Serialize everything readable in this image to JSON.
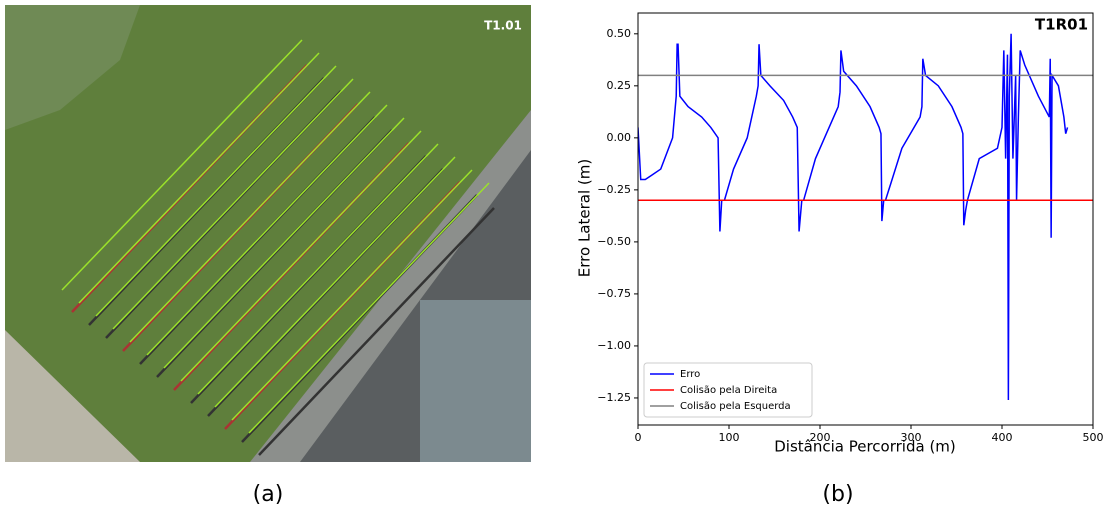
{
  "image": {
    "label": "T1.01",
    "caption": "(a)"
  },
  "chart_data": {
    "type": "line",
    "title": "T1R01",
    "caption": "(b)",
    "x_label": "Distância Percorrida (m)",
    "y_label": "Erro Lateral (m)",
    "xlim": [
      0,
      500
    ],
    "ylim": [
      -1.38,
      0.6
    ],
    "xticks": [
      0,
      100,
      200,
      300,
      400,
      500
    ],
    "yticks": [
      {
        "value": 0.5,
        "label": "0.50"
      },
      {
        "value": 0.25,
        "label": "0.25"
      },
      {
        "value": 0,
        "label": "0.00"
      },
      {
        "value": -0.25,
        "label": "−0.25"
      },
      {
        "value": -0.5,
        "label": "−0.50"
      },
      {
        "value": -0.75,
        "label": "−0.75"
      },
      {
        "value": -1,
        "label": "−1.00"
      },
      {
        "value": -1.25,
        "label": "−1.25"
      }
    ],
    "legend": "lower left",
    "series": [
      {
        "name": "Erro",
        "color": "#0000ff",
        "x": [
          0,
          3,
          8,
          15,
          25,
          38,
          42,
          43,
          44,
          46,
          55,
          70,
          80,
          88,
          90,
          92,
          95,
          105,
          120,
          130,
          132,
          133,
          135,
          145,
          160,
          170,
          175,
          177,
          180,
          182,
          195,
          205,
          220,
          222,
          223,
          226,
          240,
          255,
          265,
          267,
          268,
          270,
          272,
          290,
          310,
          312,
          313,
          316,
          330,
          345,
          355,
          357,
          358,
          360,
          362,
          375,
          395,
          400,
          402,
          404,
          406,
          407,
          408,
          410,
          412,
          415,
          416,
          418,
          420,
          425,
          440,
          452,
          453,
          454,
          455,
          462,
          468,
          470,
          472
        ],
        "values": [
          0.05,
          -0.2,
          -0.2,
          -0.18,
          -0.15,
          0,
          0.2,
          0.45,
          0.45,
          0.2,
          0.15,
          0.1,
          0.05,
          0,
          -0.45,
          -0.3,
          -0.3,
          -0.15,
          0,
          0.2,
          0.25,
          0.45,
          0.3,
          0.25,
          0.18,
          0.1,
          0.05,
          -0.45,
          -0.3,
          -0.3,
          -0.1,
          0,
          0.15,
          0.22,
          0.42,
          0.32,
          0.25,
          0.15,
          0.05,
          0.02,
          -0.4,
          -0.3,
          -0.3,
          -0.05,
          0.1,
          0.15,
          0.38,
          0.3,
          0.25,
          0.15,
          0.05,
          0.02,
          -0.42,
          -0.35,
          -0.3,
          -0.1,
          -0.05,
          0.05,
          0.42,
          -0.1,
          0.4,
          -1.26,
          0.2,
          0.5,
          -0.1,
          0.3,
          -0.3,
          0.1,
          0.42,
          0.35,
          0.2,
          0.1,
          0.38,
          -0.48,
          0.3,
          0.25,
          0.1,
          0.02,
          0.05
        ]
      },
      {
        "name": "Colisão pela Direita",
        "color": "#ff0000",
        "x": [
          0,
          500
        ],
        "values": [
          -0.3,
          -0.3
        ]
      },
      {
        "name": "Colisão pela Esquerda",
        "color": "#808080",
        "x": [
          0,
          500
        ],
        "values": [
          0.3,
          0.3
        ]
      }
    ]
  }
}
